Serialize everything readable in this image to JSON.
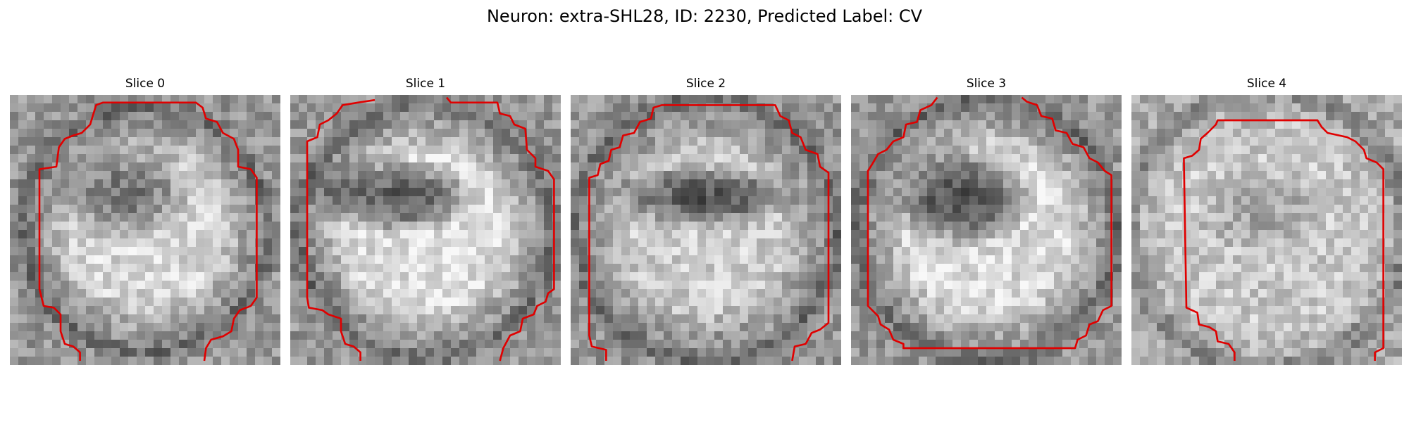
{
  "figure": {
    "title": "Neuron: extra-SHL28, ID: 2230, Predicted Label: CV",
    "colormap": "gray",
    "contour_color": "#e00000",
    "panels": [
      {
        "title": "Slice 0"
      },
      {
        "title": "Slice 1"
      },
      {
        "title": "Slice 2"
      },
      {
        "title": "Slice 3"
      },
      {
        "title": "Slice 4"
      }
    ]
  }
}
